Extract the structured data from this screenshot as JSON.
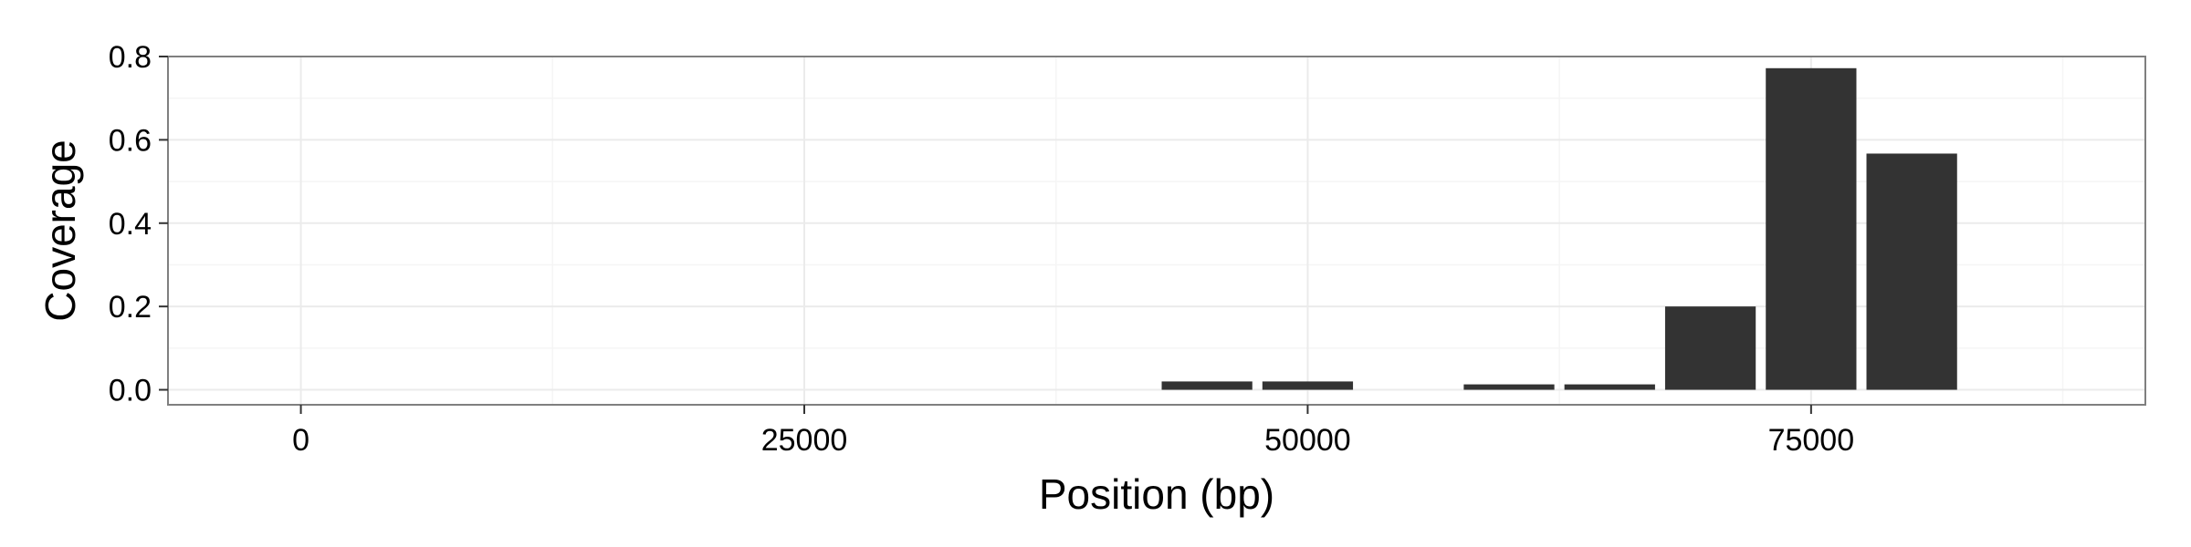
{
  "chart_data": {
    "type": "bar",
    "title": "",
    "xlabel": "Position (bp)",
    "ylabel": "Coverage",
    "xlim": [
      -6600,
      91600
    ],
    "ylim": [
      -0.036,
      0.8
    ],
    "xticks": [
      0,
      25000,
      50000,
      75000
    ],
    "xtick_labels": [
      "0",
      "25000",
      "50000",
      "75000"
    ],
    "yticks": [
      0.0,
      0.2,
      0.4,
      0.6,
      0.8
    ],
    "ytick_labels": [
      "0.0",
      "0.2",
      "0.4",
      "0.6",
      "0.8"
    ],
    "bar_width": 4500,
    "x": [
      45000,
      50000,
      60000,
      65000,
      70000,
      75000,
      80000
    ],
    "values": [
      0.02,
      0.02,
      0.013,
      0.013,
      0.2,
      0.772,
      0.567
    ],
    "grid": true,
    "legend": "none",
    "colors": {
      "bar": "#333333",
      "panel_background": "#ffffff",
      "grid_major": "#ebebeb",
      "grid_minor": "#f5f5f5",
      "panel_border": "#7f7f7f",
      "tick": "#333333"
    }
  }
}
